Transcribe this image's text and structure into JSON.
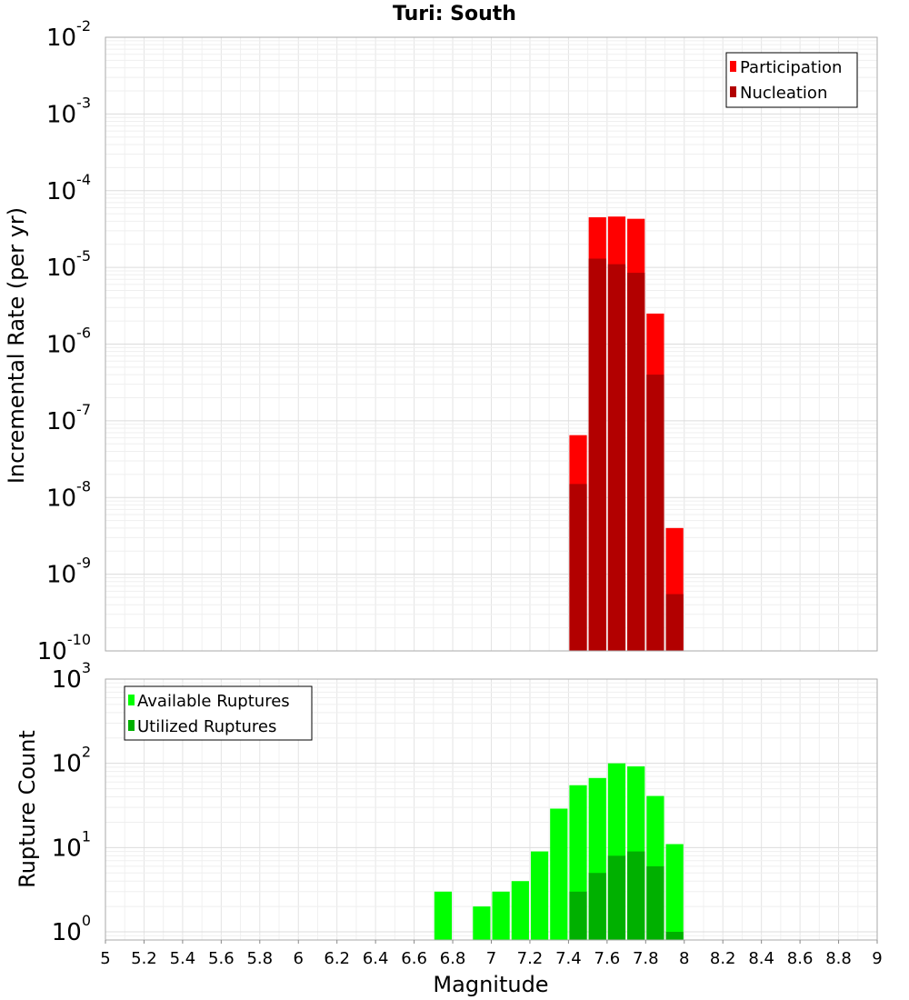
{
  "chart_data": [
    {
      "type": "bar",
      "title": "Turi: South",
      "ylabel": "Incremental Rate (per yr)",
      "xlabel": "",
      "yscale": "log",
      "ylim": [
        1e-10,
        0.01
      ],
      "xlim": [
        5,
        9
      ],
      "grid": true,
      "legend": "top-right",
      "bar_width": 0.1,
      "bin_centers": [
        7.45,
        7.55,
        7.65,
        7.75,
        7.85,
        7.95
      ],
      "y_tick_labels": [
        {
          "base": "10",
          "exp": "-10"
        },
        {
          "base": "10",
          "exp": "-9"
        },
        {
          "base": "10",
          "exp": "-8"
        },
        {
          "base": "10",
          "exp": "-7"
        },
        {
          "base": "10",
          "exp": "-6"
        },
        {
          "base": "10",
          "exp": "-5"
        },
        {
          "base": "10",
          "exp": "-4"
        },
        {
          "base": "10",
          "exp": "-3"
        },
        {
          "base": "10",
          "exp": "-2"
        }
      ],
      "series": [
        {
          "name": "Participation",
          "color": "#ff0000",
          "values": [
            6.5e-08,
            4.5e-05,
            4.6e-05,
            4.3e-05,
            2.5e-06,
            4e-09
          ]
        },
        {
          "name": "Nucleation",
          "color": "#b20000",
          "values": [
            1.5e-08,
            1.3e-05,
            1.1e-05,
            8.5e-06,
            4e-07,
            5.5e-10
          ]
        }
      ]
    },
    {
      "type": "bar",
      "title": "",
      "ylabel": "Rupture Count",
      "xlabel": "Magnitude",
      "yscale": "log",
      "ylim": [
        0.8,
        1000
      ],
      "xlim": [
        5,
        9
      ],
      "grid": true,
      "legend": "top-left",
      "bar_width": 0.1,
      "bin_centers": [
        6.75,
        6.95,
        7.05,
        7.15,
        7.25,
        7.35,
        7.45,
        7.55,
        7.65,
        7.75,
        7.85,
        7.95
      ],
      "y_tick_labels": [
        {
          "base": "10",
          "exp": "0"
        },
        {
          "base": "10",
          "exp": "1"
        },
        {
          "base": "10",
          "exp": "2"
        },
        {
          "base": "10",
          "exp": "3"
        }
      ],
      "x_tick_labels": [
        "5",
        "5.2",
        "5.4",
        "5.6",
        "5.8",
        "6",
        "6.2",
        "6.4",
        "6.6",
        "6.8",
        "7",
        "7.2",
        "7.4",
        "7.6",
        "7.8",
        "8",
        "8.2",
        "8.4",
        "8.6",
        "8.8",
        "9"
      ],
      "series": [
        {
          "name": "Available Ruptures",
          "color": "#00ff00",
          "values": [
            3,
            2,
            3,
            4,
            9,
            29,
            55,
            67,
            100,
            92,
            41,
            11
          ]
        },
        {
          "name": "Utilized Ruptures",
          "color": "#00b000",
          "values": [
            0,
            0,
            0,
            0,
            0,
            0,
            3,
            5,
            8,
            9,
            6,
            1
          ]
        }
      ]
    }
  ]
}
